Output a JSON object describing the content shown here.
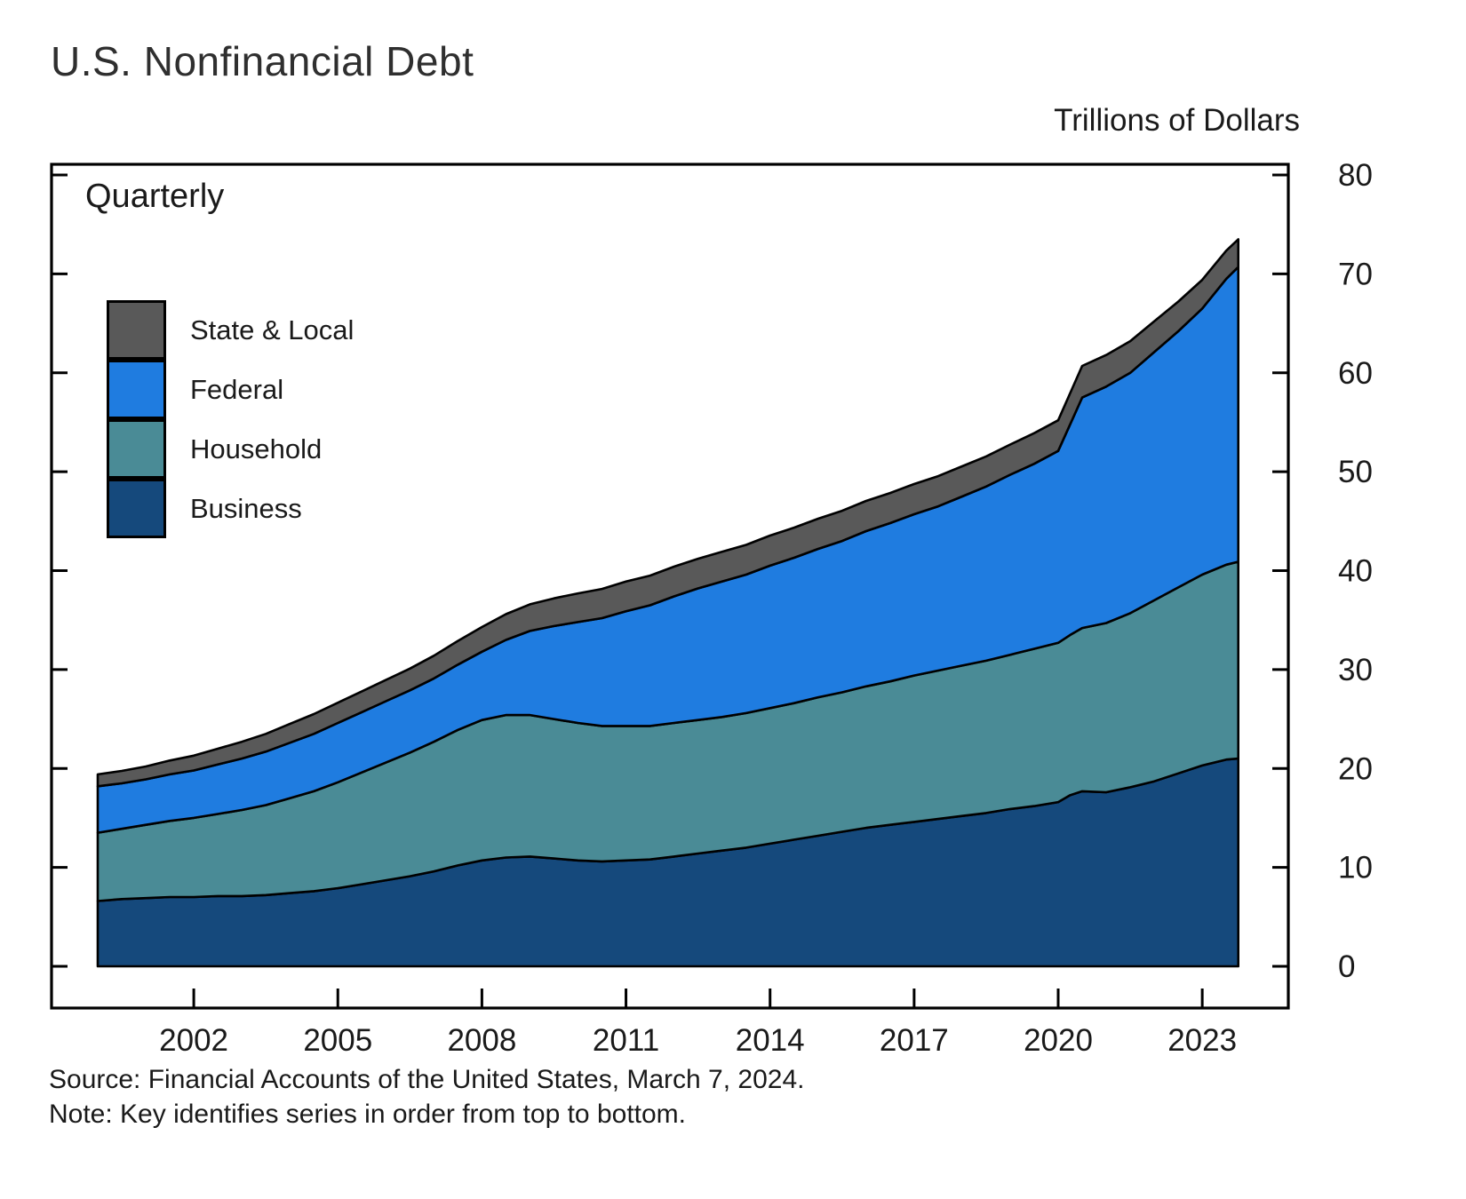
{
  "title": "U.S. Nonfinancial Debt",
  "y_axis_title": "Trillions of Dollars",
  "frequency_label": "Quarterly",
  "source_line": "Source: Financial Accounts of the United States, March 7, 2024.",
  "note_line": "Note: Key identifies series in order from top to bottom.",
  "legend": [
    {
      "label": "State & Local",
      "color": "#595959"
    },
    {
      "label": "Federal",
      "color": "#1f7ce0"
    },
    {
      "label": "Household",
      "color": "#4a8b96"
    },
    {
      "label": "Business",
      "color": "#15497c"
    }
  ],
  "chart_data": {
    "type": "area",
    "stacked": true,
    "title": "U.S. Nonfinancial Debt",
    "ylabel": "Trillions of Dollars",
    "units": "trillions of dollars",
    "frequency": "Quarterly",
    "legend_order_top_to_bottom": [
      "State & Local",
      "Federal",
      "Household",
      "Business"
    ],
    "xlim": [
      1999.05,
      2024.8
    ],
    "ylim": [
      0,
      80
    ],
    "xticks": [
      2002,
      2005,
      2008,
      2011,
      2014,
      2017,
      2020,
      2023
    ],
    "yticks": [
      0,
      10,
      20,
      30,
      40,
      50,
      60,
      70,
      80
    ],
    "grid": false,
    "x": [
      2000,
      2000.5,
      2001,
      2001.5,
      2002,
      2002.5,
      2003,
      2003.5,
      2004,
      2004.5,
      2005,
      2005.5,
      2006,
      2006.5,
      2007,
      2007.5,
      2008,
      2008.5,
      2009,
      2009.5,
      2010,
      2010.5,
      2011,
      2011.5,
      2012,
      2012.5,
      2013,
      2013.5,
      2014,
      2014.5,
      2015,
      2015.5,
      2016,
      2016.5,
      2017,
      2017.5,
      2018,
      2018.5,
      2019,
      2019.5,
      2020,
      2020.25,
      2020.5,
      2021,
      2021.5,
      2022,
      2022.5,
      2023,
      2023.5,
      2023.75
    ],
    "series": [
      {
        "name": "Business",
        "color": "#15497c",
        "values": [
          6.6,
          6.8,
          6.9,
          7.0,
          7.0,
          7.1,
          7.1,
          7.2,
          7.4,
          7.6,
          7.9,
          8.3,
          8.7,
          9.1,
          9.6,
          10.2,
          10.7,
          11.0,
          11.1,
          10.9,
          10.7,
          10.6,
          10.7,
          10.8,
          11.1,
          11.4,
          11.7,
          12.0,
          12.4,
          12.8,
          13.2,
          13.6,
          14.0,
          14.3,
          14.6,
          14.9,
          15.2,
          15.5,
          15.9,
          16.2,
          16.6,
          17.3,
          17.7,
          17.6,
          18.1,
          18.7,
          19.5,
          20.3,
          20.9,
          21.0
        ]
      },
      {
        "name": "Household",
        "color": "#4a8b96",
        "values": [
          6.9,
          7.1,
          7.4,
          7.7,
          8.0,
          8.3,
          8.7,
          9.1,
          9.6,
          10.1,
          10.7,
          11.3,
          11.9,
          12.5,
          13.1,
          13.7,
          14.2,
          14.4,
          14.3,
          14.1,
          13.9,
          13.7,
          13.6,
          13.5,
          13.5,
          13.5,
          13.5,
          13.6,
          13.7,
          13.8,
          14.0,
          14.1,
          14.3,
          14.5,
          14.8,
          15.0,
          15.2,
          15.4,
          15.6,
          15.9,
          16.1,
          16.2,
          16.5,
          17.1,
          17.6,
          18.3,
          18.8,
          19.3,
          19.7,
          19.9
        ]
      },
      {
        "name": "Federal",
        "color": "#1f7ce0",
        "values": [
          4.7,
          4.6,
          4.6,
          4.7,
          4.8,
          5.0,
          5.2,
          5.4,
          5.6,
          5.8,
          6.0,
          6.1,
          6.2,
          6.3,
          6.4,
          6.6,
          6.9,
          7.6,
          8.5,
          9.4,
          10.2,
          10.9,
          11.6,
          12.2,
          12.8,
          13.3,
          13.7,
          14.0,
          14.4,
          14.7,
          15.0,
          15.3,
          15.7,
          16.0,
          16.3,
          16.6,
          17.1,
          17.6,
          18.2,
          18.7,
          19.4,
          21.3,
          23.3,
          23.9,
          24.3,
          25.1,
          25.9,
          26.9,
          28.9,
          29.8
        ]
      },
      {
        "name": "State & Local",
        "color": "#595959",
        "values": [
          1.2,
          1.25,
          1.3,
          1.4,
          1.5,
          1.6,
          1.7,
          1.8,
          1.9,
          2.0,
          2.05,
          2.1,
          2.15,
          2.2,
          2.3,
          2.4,
          2.5,
          2.6,
          2.7,
          2.8,
          2.9,
          2.95,
          3.0,
          3.0,
          3.0,
          3.0,
          3.0,
          3.0,
          3.05,
          3.05,
          3.05,
          3.05,
          3.05,
          3.05,
          3.05,
          3.05,
          3.05,
          3.05,
          3.05,
          3.1,
          3.1,
          3.15,
          3.2,
          3.2,
          3.2,
          3.1,
          3.0,
          2.9,
          2.85,
          2.8
        ]
      }
    ]
  }
}
